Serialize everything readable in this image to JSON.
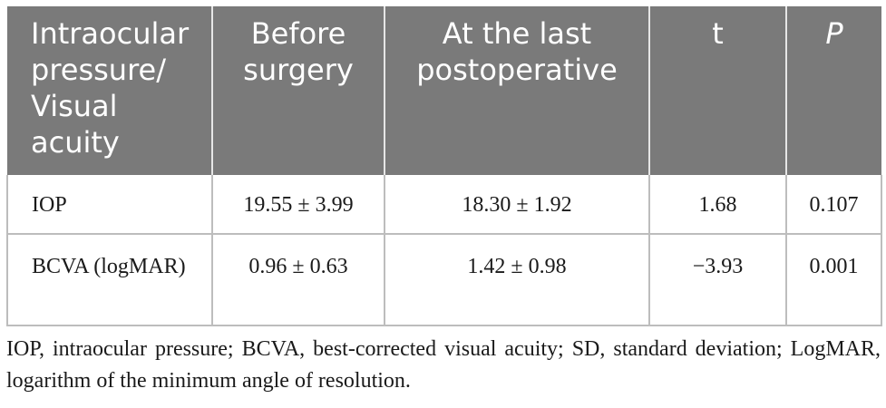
{
  "table": {
    "headers": [
      "Intraocular pressure/ Visual acuity",
      "Before surgery",
      "At the last postoperative",
      "t",
      "P"
    ],
    "rows": [
      [
        "IOP",
        "19.55 ± 3.99",
        "18.30 ± 1.92",
        "1.68",
        "0.107"
      ],
      [
        "BCVA (logMAR)",
        "0.96 ± 0.63",
        "1.42 ± 0.98",
        "−3.93",
        "0.001"
      ]
    ]
  },
  "footnote": "IOP, intraocular pressure; BCVA, best-corrected visual acuity; SD, standard deviation; LogMAR, logarithm of the minimum angle of resolution.",
  "colors": {
    "header_bg": "#7a7a7a",
    "header_text": "#ffffff",
    "border": "#bdbdbd"
  }
}
